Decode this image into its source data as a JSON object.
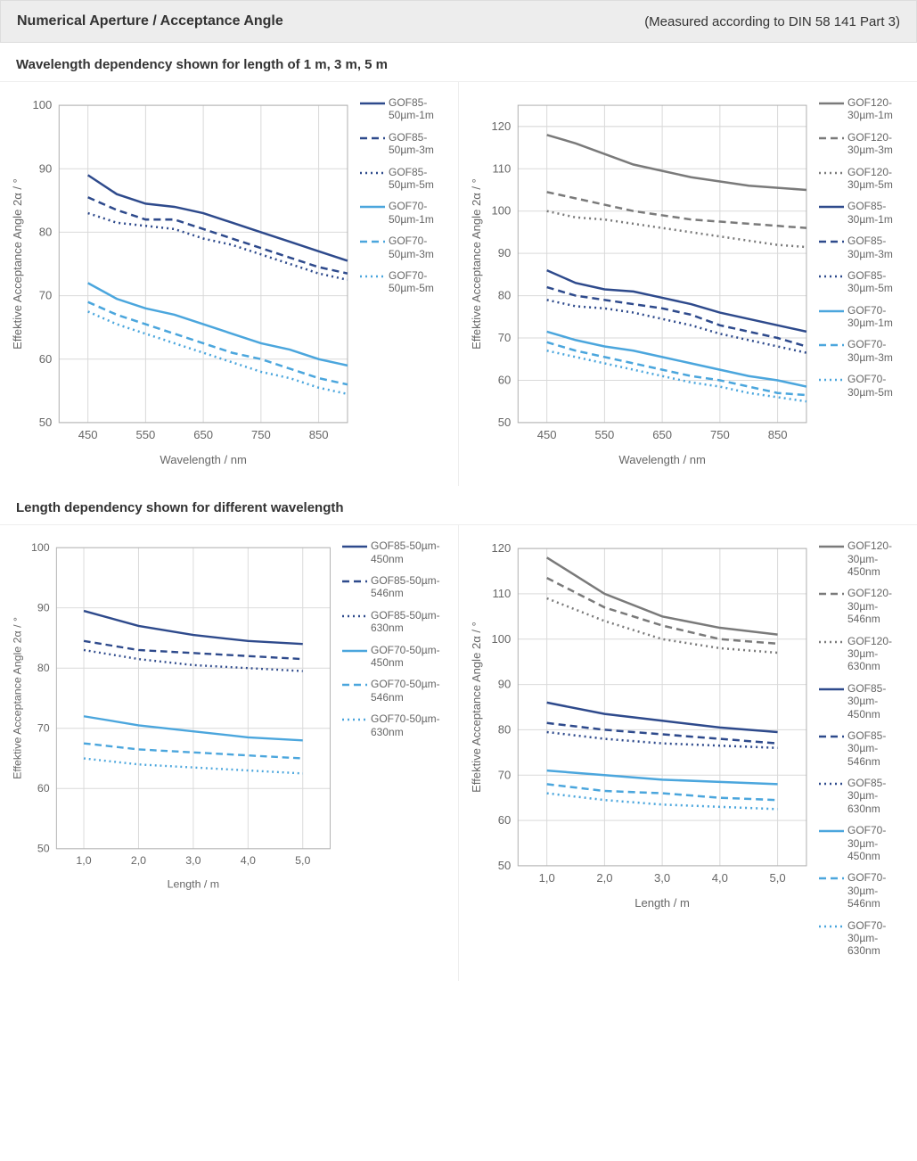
{
  "header": {
    "title": "Numerical Aperture / Acceptance Angle",
    "note": "(Measured according to DIN 58 141 Part 3)"
  },
  "section1": {
    "title": "Wavelength dependency shown for length of 1 m, 3 m, 5 m"
  },
  "section2": {
    "title": "Length dependency shown for different wavelength"
  },
  "colors": {
    "darkblue": "#2e4a8c",
    "lightblue": "#4ba6dd",
    "gray": "#7a7a7a",
    "grid": "#d9d9d9",
    "axis": "#b0b0b0",
    "text": "#666666"
  },
  "dash": {
    "solid": "",
    "dashed": "8 5",
    "dotted": "2 4"
  },
  "chart_defaults": {
    "line_width": 2.5,
    "font_size_tick": 13,
    "font_size_axis": 13
  },
  "charts": [
    {
      "id": "c1",
      "xlabel": "Wavelength / nm",
      "ylabel": "Effektive Acceptance Angle 2α / °",
      "xlim": [
        400,
        900
      ],
      "ylim": [
        50,
        100
      ],
      "xticks": [
        450,
        550,
        650,
        750,
        850
      ],
      "yticks": [
        50,
        60,
        70,
        80,
        90,
        100
      ],
      "legend_width": "narrow",
      "series": [
        {
          "label": "GOF85-50µm-1m",
          "color": "darkblue",
          "dash": "solid",
          "x": [
            450,
            500,
            550,
            600,
            650,
            700,
            750,
            800,
            850,
            900
          ],
          "y": [
            89,
            86,
            84.5,
            84,
            83,
            81.5,
            80,
            78.5,
            77,
            75.5
          ]
        },
        {
          "label": "GOF85-50µm-3m",
          "color": "darkblue",
          "dash": "dashed",
          "x": [
            450,
            500,
            550,
            600,
            650,
            700,
            750,
            800,
            850,
            900
          ],
          "y": [
            85.5,
            83.5,
            82,
            82,
            80.5,
            79,
            77.5,
            76,
            74.5,
            73.5
          ]
        },
        {
          "label": "GOF85-50µm-5m",
          "color": "darkblue",
          "dash": "dotted",
          "x": [
            450,
            500,
            550,
            600,
            650,
            700,
            750,
            800,
            850,
            900
          ],
          "y": [
            83,
            81.5,
            81,
            80.5,
            79,
            78,
            76.5,
            75,
            73.5,
            72.5
          ]
        },
        {
          "label": "GOF70-50µm-1m",
          "color": "lightblue",
          "dash": "solid",
          "x": [
            450,
            500,
            550,
            600,
            650,
            700,
            750,
            800,
            850,
            900
          ],
          "y": [
            72,
            69.5,
            68,
            67,
            65.5,
            64,
            62.5,
            61.5,
            60,
            59
          ]
        },
        {
          "label": "GOF70-50µm-3m",
          "color": "lightblue",
          "dash": "dashed",
          "x": [
            450,
            500,
            550,
            600,
            650,
            700,
            750,
            800,
            850,
            900
          ],
          "y": [
            69,
            67,
            65.5,
            64,
            62.5,
            61,
            60,
            58.5,
            57,
            56
          ]
        },
        {
          "label": "GOF70-50µm-5m",
          "color": "lightblue",
          "dash": "dotted",
          "x": [
            450,
            500,
            550,
            600,
            650,
            700,
            750,
            800,
            850,
            900
          ],
          "y": [
            67.5,
            65.5,
            64,
            62.5,
            61,
            59.5,
            58,
            57,
            55.5,
            54.5
          ]
        }
      ]
    },
    {
      "id": "c2",
      "xlabel": "Wavelength / nm",
      "ylabel": "Effektive Acceptance Angle 2α / °",
      "xlim": [
        400,
        900
      ],
      "ylim": [
        50,
        125
      ],
      "xticks": [
        450,
        550,
        650,
        750,
        850
      ],
      "yticks": [
        50,
        60,
        70,
        80,
        90,
        100,
        110,
        120
      ],
      "legend_width": "narrow",
      "series": [
        {
          "label": "GOF120-30µm-1m",
          "color": "gray",
          "dash": "solid",
          "x": [
            450,
            500,
            550,
            600,
            650,
            700,
            750,
            800,
            850,
            900
          ],
          "y": [
            118,
            116,
            113.5,
            111,
            109.5,
            108,
            107,
            106,
            105.5,
            105
          ]
        },
        {
          "label": "GOF120-30µm-3m",
          "color": "gray",
          "dash": "dashed",
          "x": [
            450,
            500,
            550,
            600,
            650,
            700,
            750,
            800,
            850,
            900
          ],
          "y": [
            104.5,
            103,
            101.5,
            100,
            99,
            98,
            97.5,
            97,
            96.5,
            96
          ]
        },
        {
          "label": "GOF120-30µm-5m",
          "color": "gray",
          "dash": "dotted",
          "x": [
            450,
            500,
            550,
            600,
            650,
            700,
            750,
            800,
            850,
            900
          ],
          "y": [
            100,
            98.5,
            98,
            97,
            96,
            95,
            94,
            93,
            92,
            91.5
          ]
        },
        {
          "label": "GOF85-30µm-1m",
          "color": "darkblue",
          "dash": "solid",
          "x": [
            450,
            500,
            550,
            600,
            650,
            700,
            750,
            800,
            850,
            900
          ],
          "y": [
            86,
            83,
            81.5,
            81,
            79.5,
            78,
            76,
            74.5,
            73,
            71.5
          ]
        },
        {
          "label": "GOF85-30µm-3m",
          "color": "darkblue",
          "dash": "dashed",
          "x": [
            450,
            500,
            550,
            600,
            650,
            700,
            750,
            800,
            850,
            900
          ],
          "y": [
            82,
            80,
            79,
            78,
            77,
            75.5,
            73,
            71.5,
            70,
            68
          ]
        },
        {
          "label": "GOF85-30µm-5m",
          "color": "darkblue",
          "dash": "dotted",
          "x": [
            450,
            500,
            550,
            600,
            650,
            700,
            750,
            800,
            850,
            900
          ],
          "y": [
            79,
            77.5,
            77,
            76,
            74.5,
            73,
            71,
            69.5,
            68,
            66.5
          ]
        },
        {
          "label": "GOF70-30µm-1m",
          "color": "lightblue",
          "dash": "solid",
          "x": [
            450,
            500,
            550,
            600,
            650,
            700,
            750,
            800,
            850,
            900
          ],
          "y": [
            71.5,
            69.5,
            68,
            67,
            65.5,
            64,
            62.5,
            61,
            60,
            58.5
          ]
        },
        {
          "label": "GOF70-30µm-3m",
          "color": "lightblue",
          "dash": "dashed",
          "x": [
            450,
            500,
            550,
            600,
            650,
            700,
            750,
            800,
            850,
            900
          ],
          "y": [
            69,
            67,
            65.5,
            64,
            62.5,
            61,
            60,
            58.5,
            57,
            56.5
          ]
        },
        {
          "label": "GOF70-30µm-5m",
          "color": "lightblue",
          "dash": "dotted",
          "x": [
            450,
            500,
            550,
            600,
            650,
            700,
            750,
            800,
            850,
            900
          ],
          "y": [
            67,
            65.5,
            64,
            62.5,
            61,
            59.5,
            58.5,
            57,
            56,
            55
          ]
        }
      ]
    },
    {
      "id": "c3",
      "xlabel": "Length / m",
      "ylabel": "Effektive Acceptance Angle 2α / °",
      "xlim": [
        0.5,
        5.5
      ],
      "ylim": [
        50,
        100
      ],
      "xticks_fmt": "dec1",
      "xticks": [
        1,
        2,
        3,
        4,
        5
      ],
      "yticks": [
        50,
        60,
        70,
        80,
        90,
        100
      ],
      "legend_width": "wide",
      "series": [
        {
          "label": "GOF85-50µm-450nm",
          "color": "darkblue",
          "dash": "solid",
          "x": [
            1,
            2,
            3,
            4,
            5
          ],
          "y": [
            89.5,
            87,
            85.5,
            84.5,
            84
          ]
        },
        {
          "label": "GOF85-50µm-546nm",
          "color": "darkblue",
          "dash": "dashed",
          "x": [
            1,
            2,
            3,
            4,
            5
          ],
          "y": [
            84.5,
            83,
            82.5,
            82,
            81.5
          ]
        },
        {
          "label": "GOF85-50µm-630nm",
          "color": "darkblue",
          "dash": "dotted",
          "x": [
            1,
            2,
            3,
            4,
            5
          ],
          "y": [
            83,
            81.5,
            80.5,
            80,
            79.5
          ]
        },
        {
          "label": "GOF70-50µm-450nm",
          "color": "lightblue",
          "dash": "solid",
          "x": [
            1,
            2,
            3,
            4,
            5
          ],
          "y": [
            72,
            70.5,
            69.5,
            68.5,
            68
          ]
        },
        {
          "label": "GOF70-50µm-546nm",
          "color": "lightblue",
          "dash": "dashed",
          "x": [
            1,
            2,
            3,
            4,
            5
          ],
          "y": [
            67.5,
            66.5,
            66,
            65.5,
            65
          ]
        },
        {
          "label": "GOF70-50µm-630nm",
          "color": "lightblue",
          "dash": "dotted",
          "x": [
            1,
            2,
            3,
            4,
            5
          ],
          "y": [
            65,
            64,
            63.5,
            63,
            62.5
          ]
        }
      ]
    },
    {
      "id": "c4",
      "xlabel": "Length / m",
      "ylabel": "Effektive Acceptance Angle 2α / °",
      "xlim": [
        0.5,
        5.5
      ],
      "ylim": [
        50,
        120
      ],
      "xticks_fmt": "dec1",
      "xticks": [
        1,
        2,
        3,
        4,
        5
      ],
      "yticks": [
        50,
        60,
        70,
        80,
        90,
        100,
        110,
        120
      ],
      "legend_width": "narrow",
      "series": [
        {
          "label": "GOF120-30µm-450nm",
          "color": "gray",
          "dash": "solid",
          "x": [
            1,
            2,
            3,
            4,
            5
          ],
          "y": [
            118,
            110,
            105,
            102.5,
            101
          ]
        },
        {
          "label": "GOF120-30µm-546nm",
          "color": "gray",
          "dash": "dashed",
          "x": [
            1,
            2,
            3,
            4,
            5
          ],
          "y": [
            113.5,
            107,
            103,
            100,
            99
          ]
        },
        {
          "label": "GOF120-30µm-630nm",
          "color": "gray",
          "dash": "dotted",
          "x": [
            1,
            2,
            3,
            4,
            5
          ],
          "y": [
            109,
            104,
            100,
            98,
            97
          ]
        },
        {
          "label": "GOF85-30µm-450nm",
          "color": "darkblue",
          "dash": "solid",
          "x": [
            1,
            2,
            3,
            4,
            5
          ],
          "y": [
            86,
            83.5,
            82,
            80.5,
            79.5
          ]
        },
        {
          "label": "GOF85-30µm-546nm",
          "color": "darkblue",
          "dash": "dashed",
          "x": [
            1,
            2,
            3,
            4,
            5
          ],
          "y": [
            81.5,
            80,
            79,
            78,
            77
          ]
        },
        {
          "label": "GOF85-30µm-630nm",
          "color": "darkblue",
          "dash": "dotted",
          "x": [
            1,
            2,
            3,
            4,
            5
          ],
          "y": [
            79.5,
            78,
            77,
            76.5,
            76
          ]
        },
        {
          "label": "GOF70-30µm-450nm",
          "color": "lightblue",
          "dash": "solid",
          "x": [
            1,
            2,
            3,
            4,
            5
          ],
          "y": [
            71,
            70,
            69,
            68.5,
            68
          ]
        },
        {
          "label": "GOF70-30µm-546nm",
          "color": "lightblue",
          "dash": "dashed",
          "x": [
            1,
            2,
            3,
            4,
            5
          ],
          "y": [
            68,
            66.5,
            66,
            65,
            64.5
          ]
        },
        {
          "label": "GOF70-30µm-630nm",
          "color": "lightblue",
          "dash": "dotted",
          "x": [
            1,
            2,
            3,
            4,
            5
          ],
          "y": [
            66,
            64.5,
            63.5,
            63,
            62.5
          ]
        }
      ]
    }
  ]
}
